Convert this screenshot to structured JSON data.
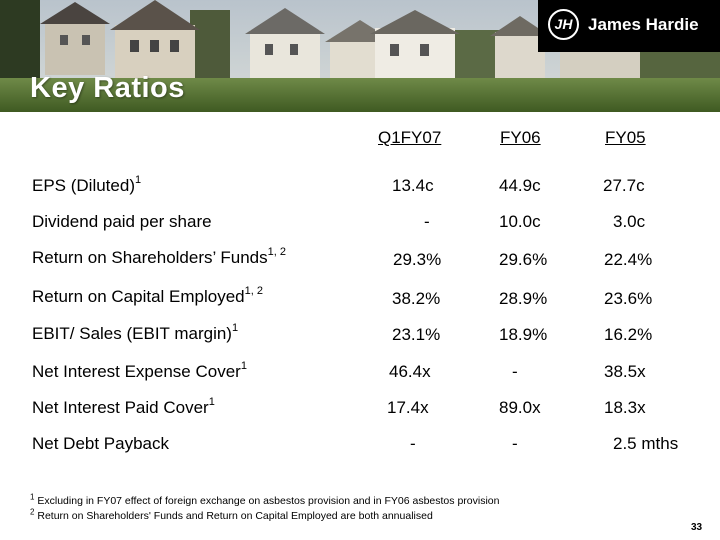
{
  "slide": {
    "title": "Key Ratios",
    "page_number": "33"
  },
  "brand": {
    "name": "James Hardie",
    "mark": "JH"
  },
  "columns": [
    "Q1FY07",
    "FY06",
    "FY05"
  ],
  "rows": [
    {
      "label": "EPS (Diluted)",
      "sup": "1",
      "values": [
        "13.4c",
        "44.9c",
        "27.7c"
      ]
    },
    {
      "label": "Dividend paid per share",
      "sup": "",
      "values": [
        "-",
        "10.0c",
        "3.0c"
      ]
    },
    {
      "label": "Return on Shareholders’ Funds",
      "sup": "1, 2",
      "values": [
        "29.3%",
        "29.6%",
        "22.4%"
      ]
    },
    {
      "label": "Return on Capital Employed",
      "sup": "1, 2",
      "values": [
        "38.2%",
        "28.9%",
        "23.6%"
      ]
    },
    {
      "label": "EBIT/ Sales (EBIT margin)",
      "sup": "1",
      "values": [
        "23.1%",
        "18.9%",
        "16.2%"
      ]
    },
    {
      "label": "Net Interest Expense Cover",
      "sup": "1",
      "values": [
        "46.4x",
        "-",
        "38.5x"
      ]
    },
    {
      "label": "Net Interest Paid Cover",
      "sup": "1",
      "values": [
        "17.4x",
        "89.0x",
        "18.3x"
      ]
    },
    {
      "label": "Net Debt Payback",
      "sup": "",
      "values": [
        "-",
        "-",
        "2.5 mths"
      ]
    }
  ],
  "footnotes": [
    {
      "num": "1",
      "text": "Excluding in FY07 effect of foreign exchange on asbestos provision and in FY06 asbestos provision"
    },
    {
      "num": "2",
      "text": "Return on Shareholders' Funds and Return on Capital Employed are both annualised"
    }
  ],
  "colors": {
    "title": "#ffffff",
    "logo_bg": "#000000",
    "text": "#000000"
  }
}
